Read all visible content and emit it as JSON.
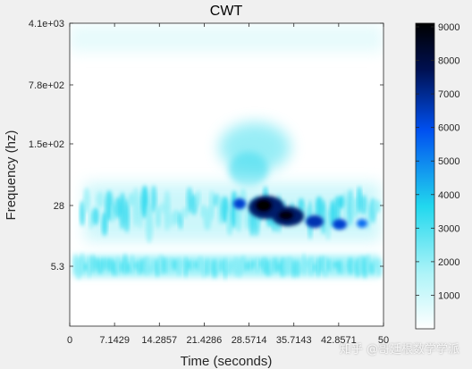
{
  "chart_data": {
    "type": "heatmap",
    "title": "CWT",
    "xlabel": "Time (seconds)",
    "ylabel": "Frequency (hz)",
    "xlim": [
      0,
      50
    ],
    "x_ticks": [
      "0",
      "7.1429",
      "14.2857",
      "21.4286",
      "28.5714",
      "35.7143",
      "42.8571",
      "50"
    ],
    "y_scale": "log",
    "y_ticks": [
      "4.1e+03",
      "7.8e+02",
      "1.5e+02",
      "28",
      "5.3"
    ],
    "colorbar": {
      "range": [
        0,
        9000
      ],
      "ticks": [
        "1000",
        "2000",
        "3000",
        "4000",
        "5000",
        "6000",
        "7000",
        "8000",
        "9000"
      ],
      "colormap": [
        "#ffffff",
        "#aef4f8",
        "#22d8ee",
        "#0050f0",
        "#001050",
        "#000000"
      ]
    },
    "features": [
      {
        "region": "band near 5 Hz across all time",
        "level": 2500
      },
      {
        "region": "band around 28 Hz, strongest 28–40 s",
        "level": 9000
      },
      {
        "region": "diffuse lobe near 150 Hz around 28 s",
        "level": 2000
      }
    ]
  },
  "watermark": "知乎 @哥廷根数学学派"
}
